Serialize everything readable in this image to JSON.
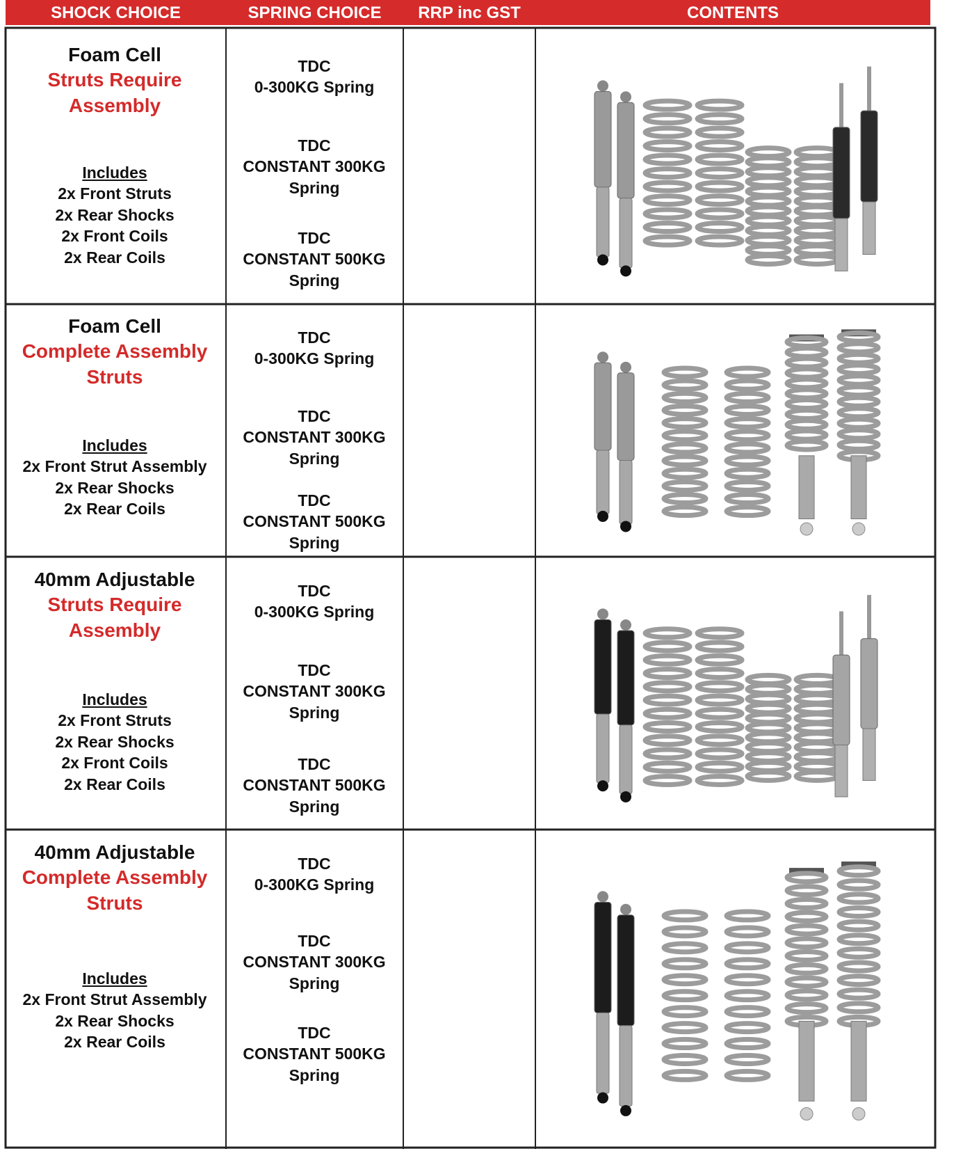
{
  "header": {
    "columns": [
      "SHOCK CHOICE",
      "SPRING CHOICE",
      "RRP inc GST",
      "CONTENTS"
    ]
  },
  "table": {
    "rows": [
      {
        "shock": "Foam Cell",
        "type": [
          "Struts Require",
          "Assembly"
        ],
        "includes_title": "Includes",
        "includes": [
          "2x Front Struts",
          "2x Rear Shocks",
          "2x Front Coils",
          "2x Rear Coils"
        ],
        "springs": [
          [
            "TDC",
            "0-300KG Spring"
          ],
          [
            "TDC",
            "CONSTANT 300KG",
            "Spring"
          ],
          [
            "TDC",
            "CONSTANT 500KG",
            "Spring"
          ]
        ]
      },
      {
        "shock": "Foam Cell",
        "type": [
          "Complete Assembly",
          "Struts"
        ],
        "includes_title": "Includes",
        "includes": [
          "2x Front Strut Assembly",
          "2x Rear Shocks",
          "2x Rear Coils"
        ],
        "springs": [
          [
            "TDC",
            "0-300KG Spring"
          ],
          [
            "TDC",
            "CONSTANT 300KG",
            "Spring"
          ],
          [
            "TDC",
            "CONSTANT 500KG",
            "Spring"
          ]
        ]
      },
      {
        "shock": "40mm Adjustable",
        "type": [
          "Struts Require",
          "Assembly"
        ],
        "includes_title": "Includes",
        "includes": [
          "2x Front Struts",
          "2x Rear Shocks",
          "2x Front Coils",
          "2x Rear Coils"
        ],
        "springs": [
          [
            "TDC",
            "0-300KG Spring"
          ],
          [
            "TDC",
            "CONSTANT 300KG",
            "Spring"
          ],
          [
            "TDC",
            "CONSTANT 500KG",
            "Spring"
          ]
        ]
      },
      {
        "shock": "40mm Adjustable",
        "type": [
          "Complete Assembly",
          "Struts"
        ],
        "includes_title": "Includes",
        "includes": [
          "2x Front Strut Assembly",
          "2x Rear Shocks",
          "2x Rear Coils"
        ],
        "springs": [
          [
            "TDC",
            "0-300KG Spring"
          ],
          [
            "TDC",
            "CONSTANT 300KG",
            "Spring"
          ],
          [
            "TDC",
            "CONSTANT 500KG",
            "Spring"
          ]
        ]
      }
    ]
  }
}
